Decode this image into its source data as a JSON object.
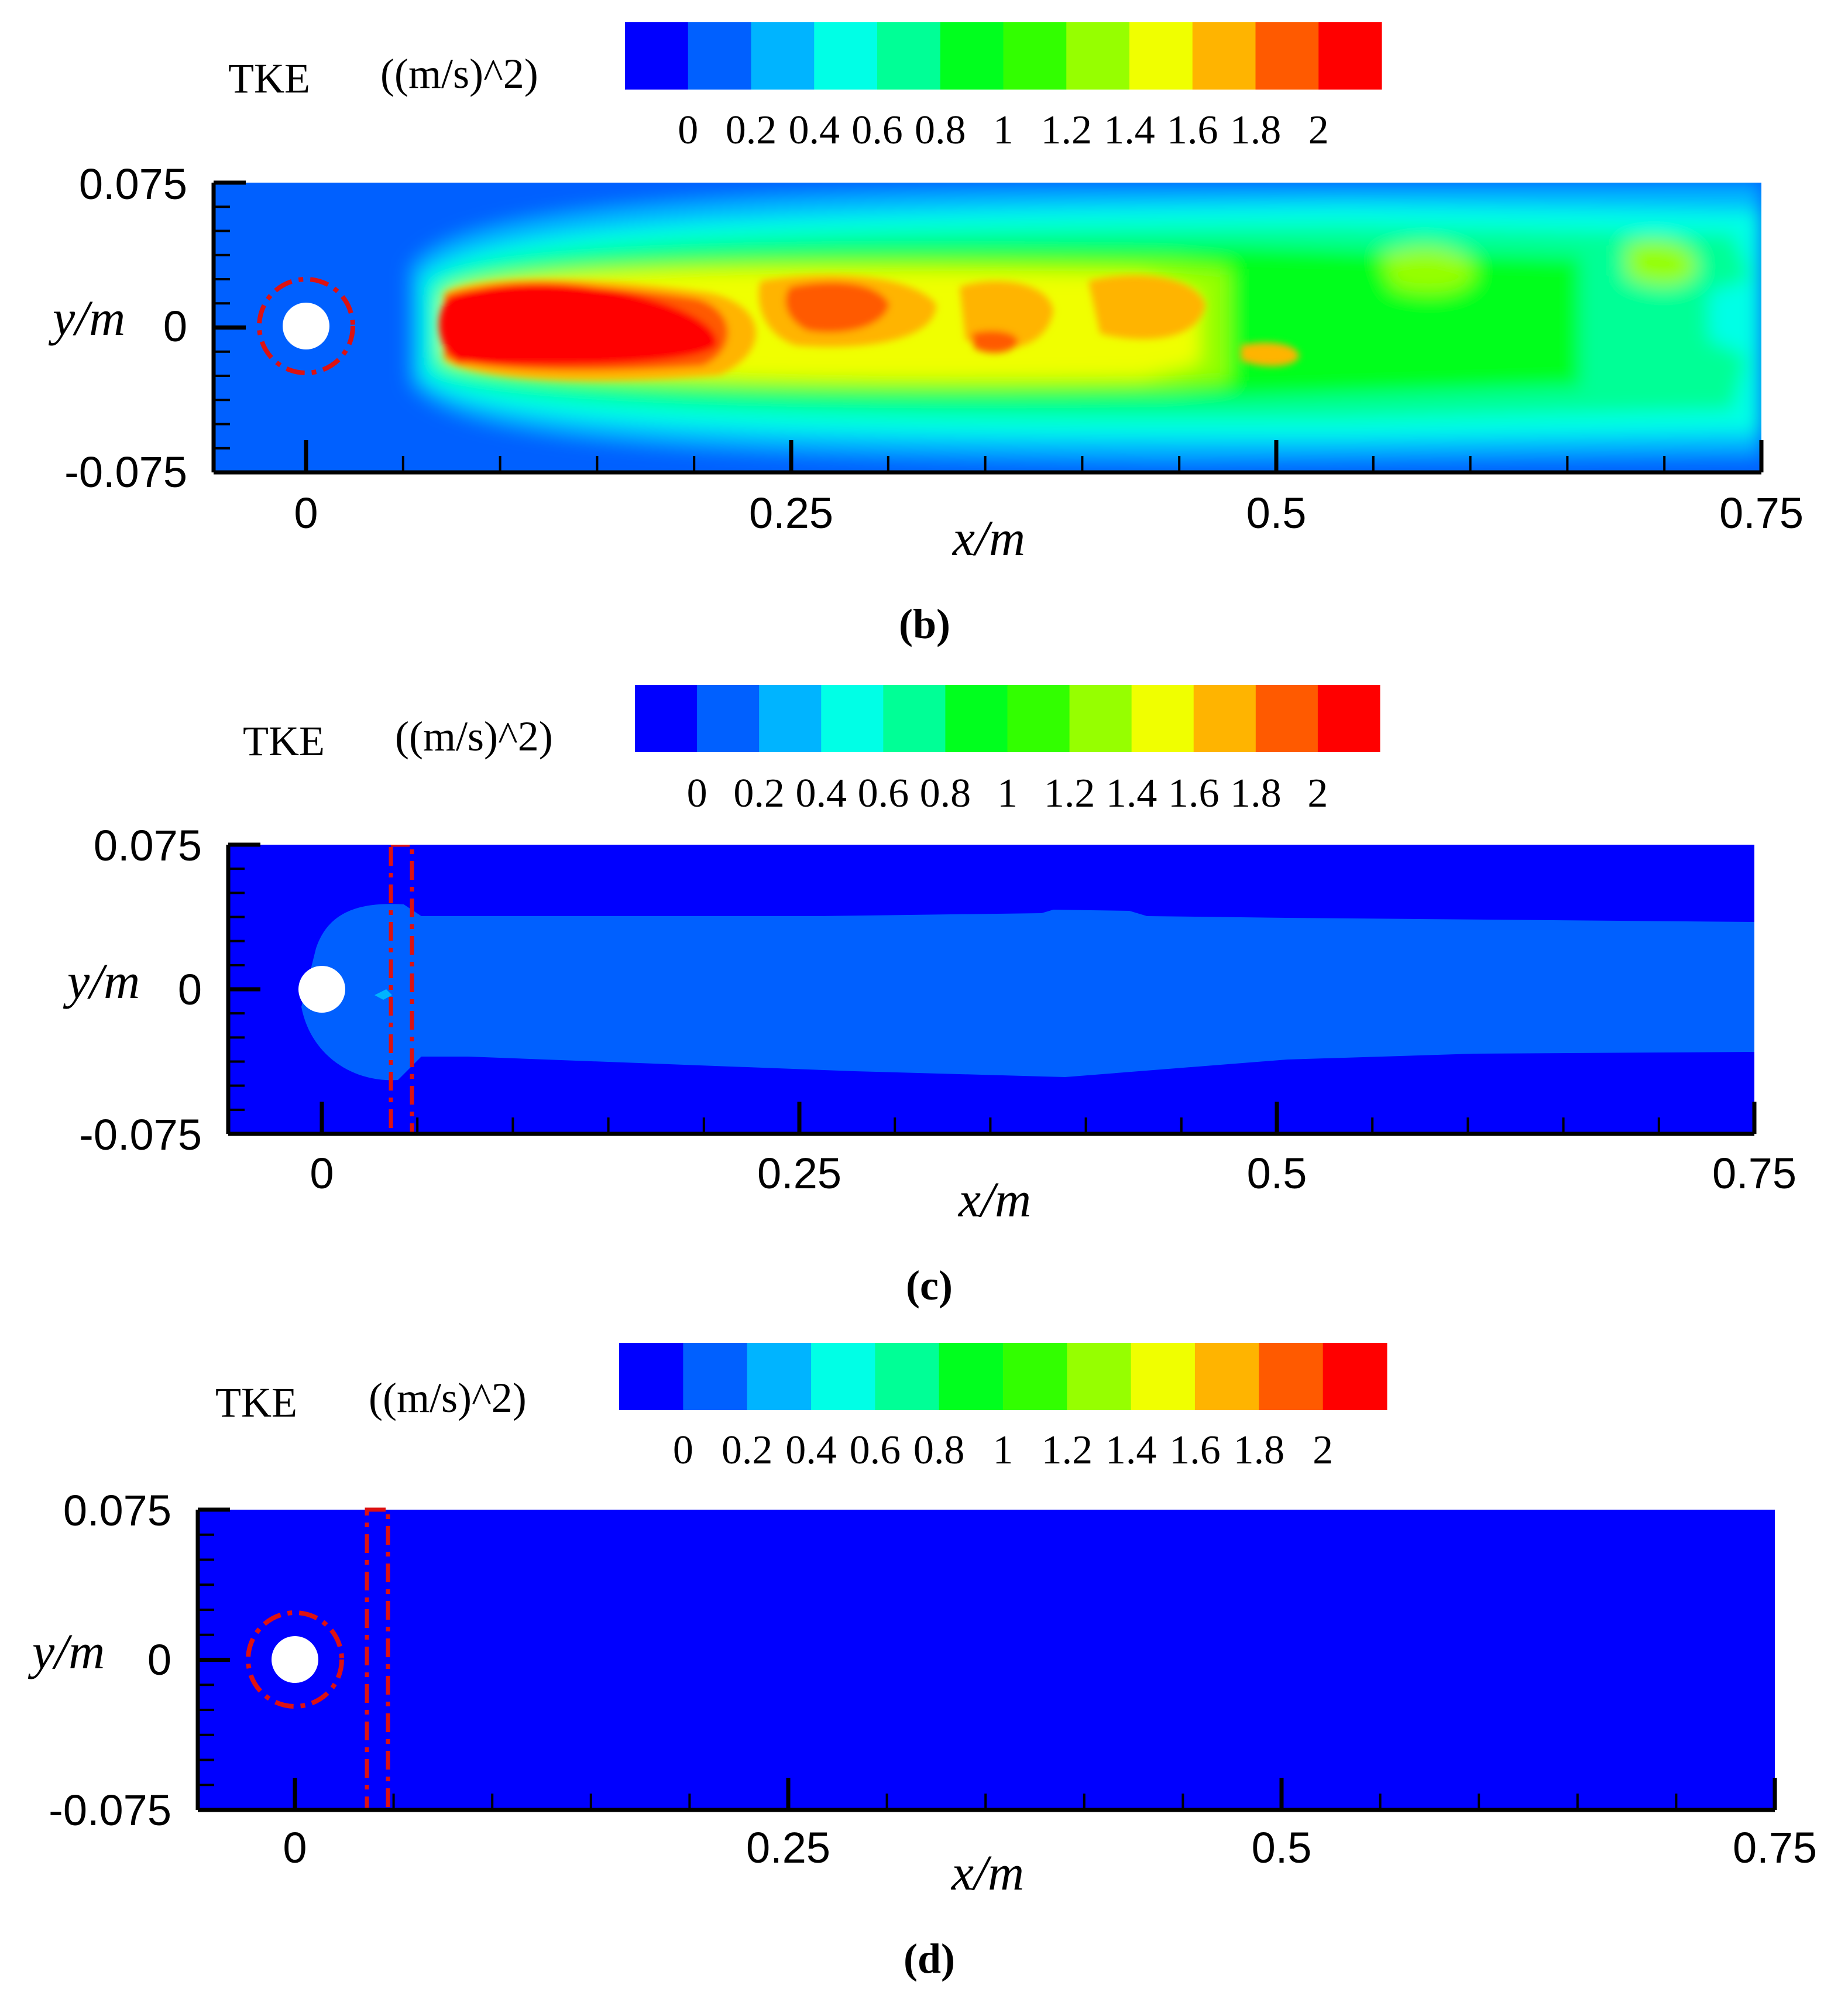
{
  "colorbar": {
    "title": "TKE",
    "unit": "((m/s)^2)",
    "levels": [
      0,
      0.2,
      0.4,
      0.6,
      0.8,
      1,
      1.2,
      1.4,
      1.6,
      1.8,
      2
    ],
    "tick_labels": [
      "0",
      "0.2",
      "0.4",
      "0.6",
      "0.8",
      "1",
      "1.2",
      "1.4",
      "1.6",
      "1.8",
      "2"
    ],
    "colors": [
      "#0000ff",
      "#0060ff",
      "#00b4ff",
      "#00ffe6",
      "#00ff96",
      "#00ff1e",
      "#32ff00",
      "#96ff00",
      "#f0ff00",
      "#ffb400",
      "#ff5a00",
      "#ff0000"
    ]
  },
  "chart_data": [
    {
      "type": "heatmap",
      "panel_label": "(b)",
      "xlabel": "x/m",
      "ylabel": "y/m",
      "xlim": [
        -0.05,
        0.75
      ],
      "ylim": [
        -0.075,
        0.075
      ],
      "x_ticks": [
        0,
        0.25,
        0.5,
        0.75
      ],
      "x_tick_labels": [
        "0",
        "0.25",
        "0.5",
        "0.75"
      ],
      "y_tick_labels": [
        "-0.075",
        "0",
        "0.075"
      ],
      "value_range": [
        0,
        2
      ],
      "wake_peak_tke": 2,
      "wake_peak_x_range": [
        0.07,
        0.2
      ],
      "background_tke": 0.1
    },
    {
      "type": "heatmap",
      "panel_label": "(c)",
      "xlabel": "x/m",
      "ylabel": "y/m",
      "xlim": [
        -0.05,
        0.75
      ],
      "ylim": [
        -0.075,
        0.075
      ],
      "x_ticks": [
        0,
        0.25,
        0.5,
        0.75
      ],
      "x_tick_labels": [
        "0",
        "0.25",
        "0.5",
        "0.75"
      ],
      "y_tick_labels": [
        "-0.075",
        "0",
        "0.075"
      ],
      "value_range": [
        0,
        2
      ],
      "wake_peak_tke": 0.2,
      "background_tke": 0.05
    },
    {
      "type": "heatmap",
      "panel_label": "(d)",
      "xlabel": "x/m",
      "ylabel": "y/m",
      "xlim": [
        -0.05,
        0.75
      ],
      "ylim": [
        -0.075,
        0.075
      ],
      "x_ticks": [
        0,
        0.25,
        0.5,
        0.75
      ],
      "x_tick_labels": [
        "0",
        "0.25",
        "0.5",
        "0.75"
      ],
      "y_tick_labels": [
        "-0.075",
        "0",
        "0.075"
      ],
      "value_range": [
        0,
        2
      ],
      "wake_peak_tke": 0,
      "background_tke": 0
    }
  ]
}
